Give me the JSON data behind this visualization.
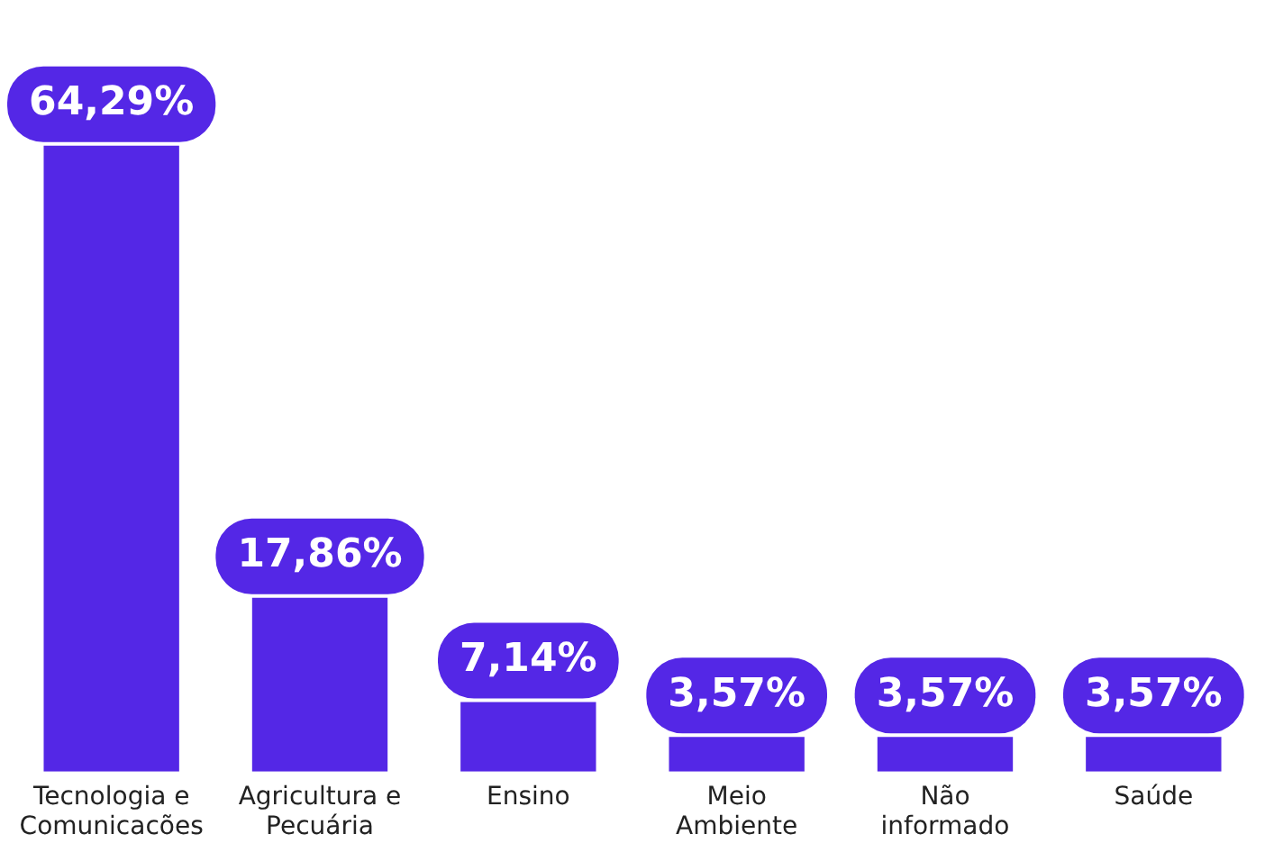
{
  "chart_data": {
    "type": "bar",
    "categories": [
      "Tecnologia e Comunicacões",
      "Agricultura e Pecuária",
      "Ensino",
      "Meio Ambiente",
      "Não informado",
      "Saúde"
    ],
    "values": [
      64.29,
      17.86,
      7.14,
      3.57,
      3.57,
      3.57
    ],
    "value_labels": [
      "64,29%",
      "17,86%",
      "7,14%",
      "3,57%",
      "3,57%",
      "3,57%"
    ],
    "color": "#5427e6",
    "grid": false,
    "legend": false
  }
}
